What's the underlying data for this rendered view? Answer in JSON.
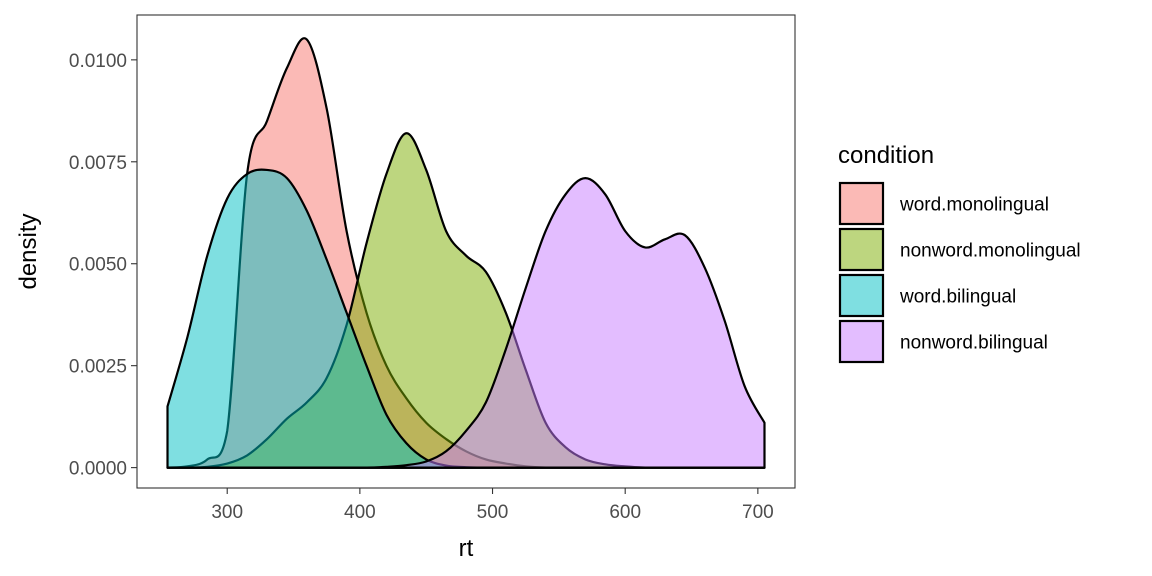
{
  "chart_data": {
    "type": "area",
    "subtype": "density",
    "xlabel": "rt",
    "ylabel": "density",
    "xlim": [
      232,
      728
    ],
    "ylim": [
      -0.0005,
      0.0111
    ],
    "x_ticks": [
      300,
      400,
      500,
      600,
      700
    ],
    "x_tick_labels": [
      "300",
      "400",
      "500",
      "600",
      "700"
    ],
    "y_ticks": [
      0.0,
      0.0025,
      0.005,
      0.0075,
      0.01
    ],
    "y_tick_labels": [
      "0.0000",
      "0.0025",
      "0.0050",
      "0.0075",
      "0.0100"
    ],
    "grid": false,
    "legend_position": "right",
    "legend_title": "condition",
    "series_opacity": 0.5,
    "series": [
      {
        "name": "word.monolingual",
        "color": "#F8766D",
        "x": [
          255,
          270,
          285,
          300,
          315,
          330,
          345,
          360,
          375,
          390,
          405,
          420,
          435,
          450,
          465,
          480,
          495,
          510,
          525,
          540,
          555,
          570,
          585,
          600,
          615,
          630,
          645,
          660,
          675,
          690,
          705
        ],
        "y": [
          0.0,
          3e-05,
          0.0002,
          0.0009,
          0.0072,
          0.0085,
          0.0098,
          0.0105,
          0.0088,
          0.0058,
          0.0038,
          0.0025,
          0.0017,
          0.0011,
          0.0007,
          0.0004,
          0.0002,
          0.0001,
          3e-05,
          0.0,
          0.0,
          0.0,
          0.0,
          0.0,
          0.0,
          0.0,
          0.0,
          0.0,
          0.0,
          0.0,
          0.0
        ]
      },
      {
        "name": "nonword.monolingual",
        "color": "#7CAE00",
        "x": [
          255,
          270,
          285,
          300,
          315,
          330,
          345,
          360,
          375,
          390,
          405,
          420,
          435,
          450,
          465,
          480,
          495,
          510,
          525,
          540,
          555,
          570,
          585,
          600,
          615,
          630,
          645,
          660,
          675,
          690,
          705
        ],
        "y": [
          0.0,
          0.0,
          2e-05,
          0.0001,
          0.0003,
          0.0007,
          0.0012,
          0.0016,
          0.0022,
          0.0035,
          0.0055,
          0.0072,
          0.0082,
          0.0073,
          0.0058,
          0.0052,
          0.0048,
          0.0038,
          0.0024,
          0.0011,
          0.0005,
          0.0002,
          8e-05,
          3e-05,
          0.0,
          0.0,
          0.0,
          0.0,
          0.0,
          0.0,
          0.0
        ]
      },
      {
        "name": "word.bilingual",
        "color": "#00BFC4",
        "x": [
          255,
          270,
          285,
          300,
          315,
          330,
          345,
          360,
          375,
          390,
          405,
          420,
          435,
          450,
          465,
          480,
          495,
          510,
          525,
          540,
          555,
          570,
          585,
          600,
          615,
          630,
          645,
          660,
          675,
          690,
          705
        ],
        "y": [
          0.0015,
          0.0032,
          0.0052,
          0.0066,
          0.0072,
          0.0073,
          0.0071,
          0.0063,
          0.0051,
          0.0038,
          0.0025,
          0.0013,
          0.0006,
          0.0002,
          5e-05,
          1e-05,
          0.0,
          0.0,
          0.0,
          0.0,
          0.0,
          0.0,
          0.0,
          0.0,
          0.0,
          0.0,
          0.0,
          0.0,
          0.0,
          0.0,
          0.0
        ]
      },
      {
        "name": "nonword.bilingual",
        "color": "#C77CFF",
        "x": [
          255,
          270,
          285,
          300,
          315,
          330,
          345,
          360,
          375,
          390,
          405,
          420,
          435,
          450,
          465,
          480,
          495,
          510,
          525,
          540,
          555,
          570,
          585,
          600,
          615,
          630,
          645,
          660,
          675,
          690,
          705
        ],
        "y": [
          0.0,
          0.0,
          0.0,
          0.0,
          0.0,
          0.0,
          0.0,
          0.0,
          0.0,
          0.0,
          0.0,
          2e-05,
          6e-05,
          0.00015,
          0.0004,
          0.0009,
          0.0016,
          0.0029,
          0.0044,
          0.0058,
          0.0067,
          0.0071,
          0.0067,
          0.0058,
          0.0054,
          0.0056,
          0.0057,
          0.0049,
          0.0036,
          0.002,
          0.0011
        ]
      }
    ]
  }
}
